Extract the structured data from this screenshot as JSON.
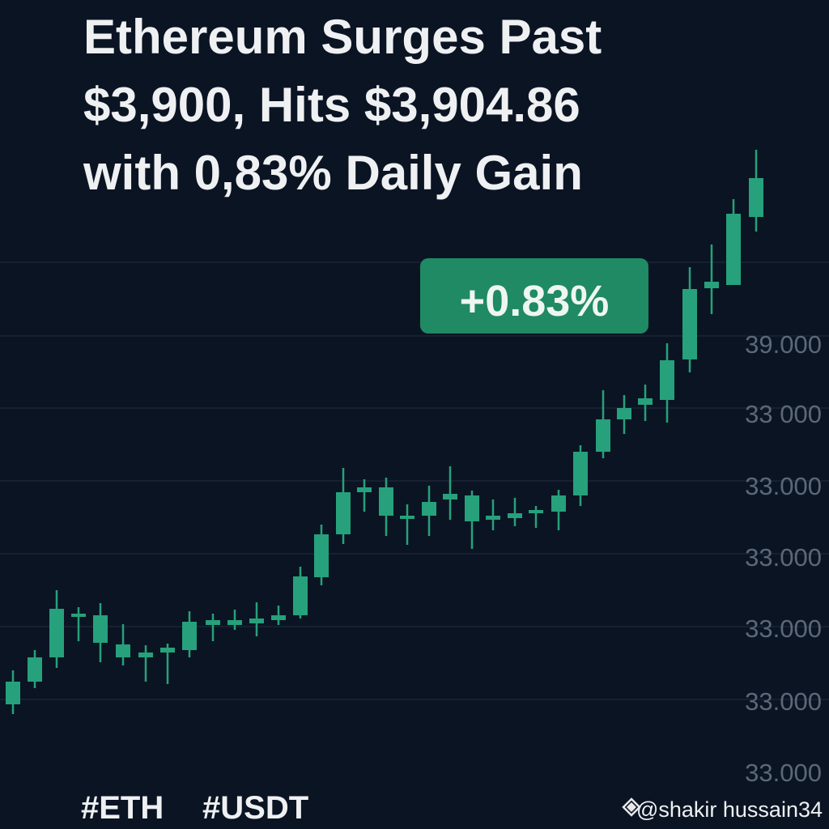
{
  "headline": [
    "Ethereum Surges Past",
    "$3,900, Hits $3,904.86",
    "with 0,83% Daily Gain"
  ],
  "badge": "+0.83%",
  "axis_labels": [
    "39.000",
    "33 000",
    "33.000",
    "33.000",
    "33.000",
    "33.000",
    "33.000"
  ],
  "hashtags": [
    "#ETH",
    "#USDT"
  ],
  "watermark": "@shakir hussain34"
}
